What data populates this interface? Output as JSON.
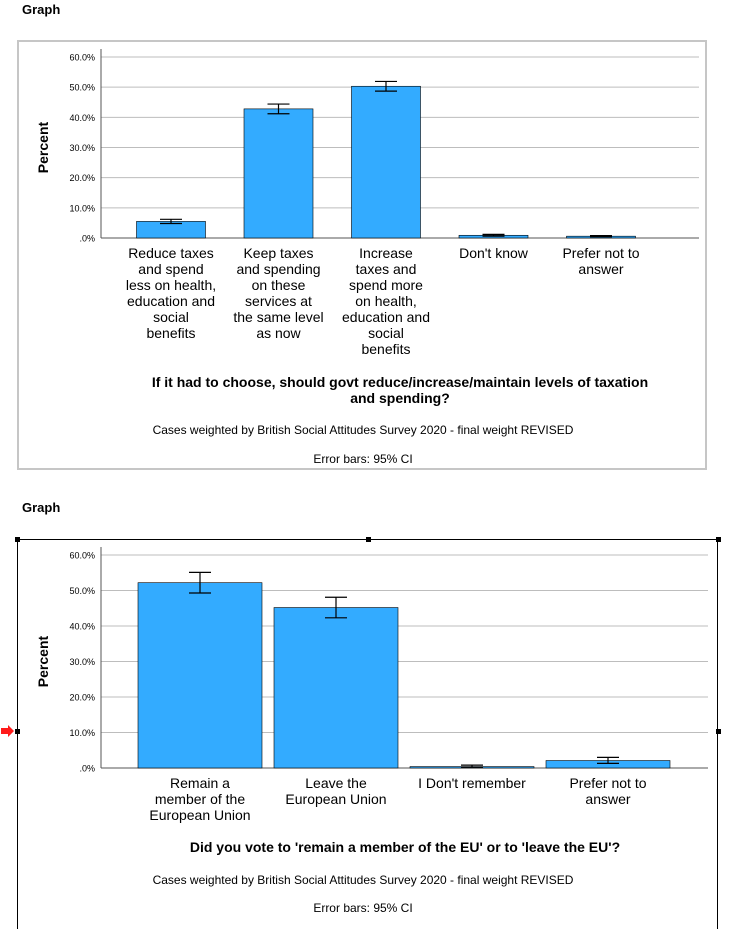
{
  "graph1": {
    "header": "Graph",
    "note_weight": "Cases weighted by British Social Attitudes Survey 2020 - final weight REVISED",
    "note_error": "Error bars: 95% CI"
  },
  "graph2": {
    "header": "Graph",
    "note_weight": "Cases weighted by British Social Attitudes Survey 2020 - final weight REVISED",
    "note_error": "Error bars: 95% CI"
  },
  "colors": {
    "bar": "#33abff",
    "bar_stroke": "#000000",
    "grid": "#bdbdbd",
    "frame": "#c6c6c6"
  },
  "chart_data": [
    {
      "type": "bar",
      "title": "If it had to choose, should govt reduce/increase/maintain levels of taxation and spending?",
      "title_lines": [
        "If it had to choose, should govt reduce/increase/maintain levels of taxation",
        "and spending?"
      ],
      "ylabel": "Percent",
      "ylim": [
        0,
        60
      ],
      "ytick_labels": [
        ".0%",
        "10.0%",
        "20.0%",
        "30.0%",
        "40.0%",
        "50.0%",
        "60.0%"
      ],
      "grid": true,
      "categories": [
        [
          "Reduce taxes",
          "and spend",
          "less on health,",
          "education and",
          "social",
          "benefits"
        ],
        [
          "Keep taxes",
          "and spending",
          "on these",
          "services at",
          "the same level",
          "as now"
        ],
        [
          "Increase",
          "taxes and",
          "spend more",
          "on health,",
          "education and",
          "social",
          "benefits"
        ],
        [
          "Don't know"
        ],
        [
          "Prefer not to",
          "answer"
        ]
      ],
      "values": [
        5.5,
        42.8,
        50.3,
        0.9,
        0.6
      ],
      "ci_low": [
        4.8,
        41.2,
        48.7,
        0.6,
        0.4
      ],
      "ci_high": [
        6.2,
        44.4,
        51.9,
        1.2,
        0.8
      ]
    },
    {
      "type": "bar",
      "title": "Did you vote to 'remain a member of the EU' or to 'leave the EU'?",
      "title_lines": [
        "Did you vote to 'remain a member of the EU' or to 'leave the EU'?"
      ],
      "ylabel": "Percent",
      "ylim": [
        0,
        60
      ],
      "ytick_labels": [
        ".0%",
        "10.0%",
        "20.0%",
        "30.0%",
        "40.0%",
        "50.0%",
        "60.0%"
      ],
      "grid": true,
      "categories": [
        [
          "Remain a",
          "member of the",
          "European Union"
        ],
        [
          "Leave the",
          "European Union"
        ],
        [
          "I Don't remember"
        ],
        [
          "Prefer not to",
          "answer"
        ]
      ],
      "values": [
        52.2,
        45.2,
        0.4,
        2.1
      ],
      "ci_low": [
        49.3,
        42.3,
        0.2,
        1.3
      ],
      "ci_high": [
        55.1,
        48.1,
        0.8,
        3.0
      ]
    }
  ]
}
